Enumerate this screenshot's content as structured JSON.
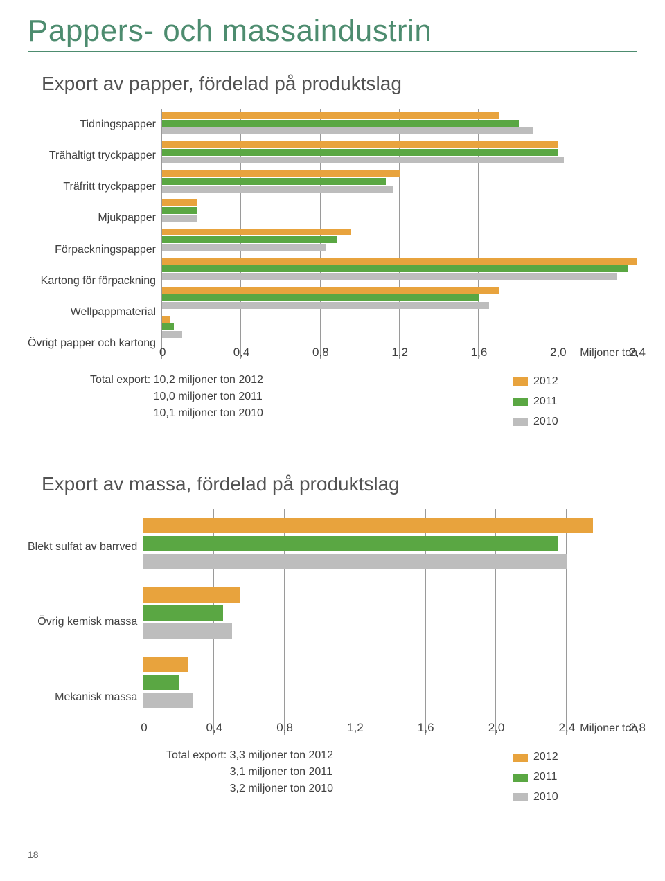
{
  "page_title": "Pappers- och massaindustrin",
  "page_number": "18",
  "colors": {
    "c2012": "#e8a33d",
    "c2011": "#5aa743",
    "c2010": "#bdbdbd",
    "grid": "#9a9a9a",
    "title": "#4d8c6f"
  },
  "legend": {
    "y2012": "2012",
    "y2011": "2011",
    "y2010": "2010"
  },
  "chart1": {
    "title": "Export av papper, fördelad på produktslag",
    "type": "horizontal-grouped-bar",
    "x_max": 2.4,
    "x_ticks": [
      "0",
      "0,4",
      "0,8",
      "1,2",
      "1,6",
      "2,0",
      "2,4"
    ],
    "unit": "Miljoner ton",
    "categories": [
      {
        "label": "Tidningspapper",
        "v2012": 1.7,
        "v2011": 1.8,
        "v2010": 1.87
      },
      {
        "label": "Trähaltigt tryckpapper",
        "v2012": 2.0,
        "v2011": 2.0,
        "v2010": 2.03
      },
      {
        "label": "Träfritt tryckpapper",
        "v2012": 1.2,
        "v2011": 1.13,
        "v2010": 1.17
      },
      {
        "label": "Mjukpapper",
        "v2012": 0.18,
        "v2011": 0.18,
        "v2010": 0.18
      },
      {
        "label": "Förpackningspapper",
        "v2012": 0.95,
        "v2011": 0.88,
        "v2010": 0.83
      },
      {
        "label": "Kartong för förpackning",
        "v2012": 2.45,
        "v2011": 2.35,
        "v2010": 2.3
      },
      {
        "label": "Wellpappmaterial",
        "v2012": 1.7,
        "v2011": 1.6,
        "v2010": 1.65
      },
      {
        "label": "Övrigt papper och kartong",
        "v2012": 0.04,
        "v2011": 0.06,
        "v2010": 0.1
      }
    ],
    "totals": {
      "lead": "Total export:",
      "l1": "10,2 miljoner ton 2012",
      "l2": "10,0 miljoner ton 2011",
      "l3": "10,1 miljoner ton 2010"
    }
  },
  "chart2": {
    "title": "Export av massa, fördelad på produktslag",
    "type": "horizontal-grouped-bar",
    "x_max": 2.8,
    "x_ticks": [
      "0",
      "0,4",
      "0,8",
      "1,2",
      "1,6",
      "2,0",
      "2,4",
      "2,8"
    ],
    "unit": "Miljoner ton",
    "categories": [
      {
        "label": "Blekt sulfat av barrved",
        "v2012": 2.55,
        "v2011": 2.35,
        "v2010": 2.4
      },
      {
        "label": "Övrig kemisk massa",
        "v2012": 0.55,
        "v2011": 0.45,
        "v2010": 0.5
      },
      {
        "label": "Mekanisk massa",
        "v2012": 0.25,
        "v2011": 0.2,
        "v2010": 0.28
      }
    ],
    "totals": {
      "lead": "Total export:",
      "l1": "3,3 miljoner ton 2012",
      "l2": "3,1 miljoner ton 2011",
      "l3": "3,2 miljoner ton 2010"
    }
  }
}
